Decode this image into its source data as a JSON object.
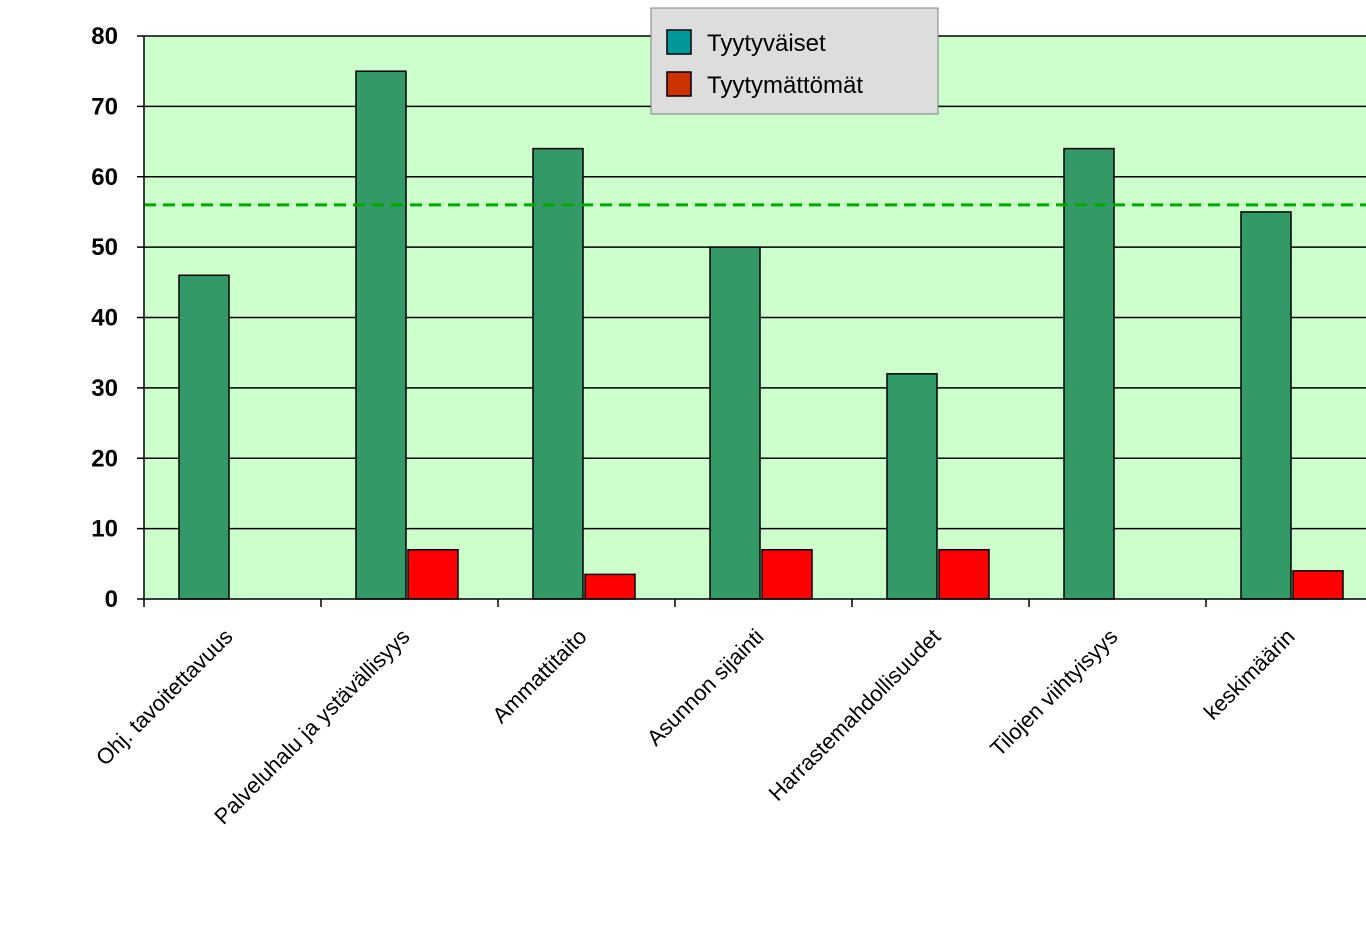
{
  "chart_data": {
    "type": "bar",
    "categories": [
      "Ohj. tavoitettavuus",
      "Palveluhalu ja ystävällisyys",
      "Ammattitaito",
      "Asunnon sijainti",
      "Harrastemahdollisuudet",
      "Tilojen viihtyisyys",
      "keskimäärin"
    ],
    "series": [
      {
        "name": "Tyytyväiset",
        "values": [
          46,
          75,
          64,
          50,
          32,
          64,
          55
        ],
        "color": "#339966",
        "legend_color": "#009999"
      },
      {
        "name": "Tyytymättömät",
        "values": [
          0,
          7,
          3.5,
          7,
          7,
          0,
          4
        ],
        "color": "#ff0000",
        "legend_color": "#cc3300"
      }
    ],
    "reference_line": {
      "value": 56,
      "style": "dashed",
      "color": "#00aa00"
    },
    "ylim": [
      0,
      80
    ],
    "yticks": [
      0,
      10,
      20,
      30,
      40,
      50,
      60,
      70,
      80
    ],
    "grid": true,
    "plot_background": "#ccffcc",
    "legend_position": "top-center",
    "title": "",
    "xlabel": "",
    "ylabel": ""
  }
}
